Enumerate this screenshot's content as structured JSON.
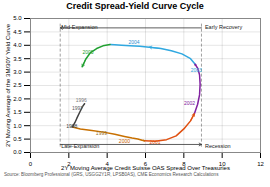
{
  "chart_data": {
    "type": "line",
    "title": "Credit Spread-Yield Curve Cycle",
    "xlabel": "2Y Moving Average Credit Suisse OAS Spread Over Treasuries",
    "ylabel": "2Y Moving Average of the 3M/30Y Yield Curve",
    "xlim": [
      0,
      12
    ],
    "ylim": [
      0,
      5
    ],
    "xticks": [
      0,
      2,
      4,
      6,
      8,
      10,
      12
    ],
    "yticks": [
      {
        "value": 0,
        "label": "0.0"
      },
      0.5,
      {
        "value": 1,
        "label": "1.0"
      },
      1.5,
      {
        "value": 2,
        "label": "2.0"
      },
      2.5,
      {
        "value": 3,
        "label": "3.0"
      },
      3.5,
      {
        "value": 4,
        "label": "4.0"
      },
      4.5,
      {
        "value": 5,
        "label": "5.0"
      }
    ],
    "grid": true,
    "series": [
      {
        "color": "#404040",
        "x": [
          2.82,
          2.72,
          2.58,
          2.42,
          2.32,
          2.24,
          2.18
        ],
        "values": [
          1.82,
          1.72,
          1.52,
          1.28,
          1.12,
          1.02,
          0.95
        ]
      },
      {
        "color": "#C87000",
        "x": [
          2.18,
          2.6,
          3.2,
          3.8,
          4.4,
          4.9,
          5.3,
          5.6,
          5.82,
          5.95
        ],
        "values": [
          0.95,
          0.88,
          0.82,
          0.76,
          0.68,
          0.6,
          0.54,
          0.5,
          0.46,
          0.44
        ]
      },
      {
        "color": "#E05010",
        "x": [
          5.95,
          6.5,
          7.1,
          7.6,
          8.0,
          8.35,
          8.55
        ],
        "values": [
          0.44,
          0.42,
          0.48,
          0.62,
          0.88,
          1.18,
          1.45
        ]
      },
      {
        "color": "#8020A0",
        "x": [
          8.55,
          8.72,
          8.82,
          8.85,
          8.82,
          8.72,
          8.58
        ],
        "values": [
          1.45,
          1.8,
          2.15,
          2.55,
          2.9,
          3.15,
          3.3
        ]
      },
      {
        "color": "#30A8E0",
        "x": [
          8.58,
          8.35,
          7.9,
          7.35,
          6.8,
          6.2,
          5.7,
          5.2,
          4.75,
          4.4,
          4.15
        ],
        "values": [
          3.3,
          3.5,
          3.68,
          3.8,
          3.88,
          3.93,
          3.96,
          3.98,
          4.0,
          4.02,
          4.03
        ]
      },
      {
        "color": "#20A030",
        "x": [
          4.15,
          3.78,
          3.45,
          3.12,
          2.88,
          2.7
        ],
        "values": [
          4.03,
          3.98,
          3.88,
          3.72,
          3.48,
          3.2
        ]
      }
    ],
    "arrows": [
      {
        "x0": 2.24,
        "y0": 1.02,
        "x1": 2.18,
        "y1": 0.95,
        "color": "#404040"
      },
      {
        "x0": 5.82,
        "y0": 0.46,
        "x1": 5.95,
        "y1": 0.44,
        "color": "#C87000"
      },
      {
        "x0": 8.35,
        "y0": 1.18,
        "x1": 8.55,
        "y1": 1.45,
        "color": "#E05010"
      },
      {
        "x0": 8.72,
        "y0": 3.15,
        "x1": 8.58,
        "y1": 3.3,
        "color": "#8020A0"
      },
      {
        "x0": 6.8,
        "y0": 3.88,
        "x1": 6.2,
        "y1": 3.93,
        "color": "#30A8E0"
      },
      {
        "x0": 2.88,
        "y0": 3.48,
        "x1": 2.7,
        "y1": 3.2,
        "color": "#20A030"
      },
      {
        "x0": 1.55,
        "y0": 0.3,
        "x1": 8.92,
        "y1": 0.3,
        "color": "#333333"
      },
      {
        "x0": 8.92,
        "y0": 4.65,
        "x1": 1.55,
        "y1": 4.65,
        "color": "#333333"
      }
    ],
    "vlines": [
      {
        "x": 1.55,
        "y0": 0.2,
        "y1": 4.8,
        "color": "#555555"
      },
      {
        "x": 8.92,
        "y0": 0.2,
        "y1": 4.8,
        "color": "#555555"
      }
    ],
    "year_labels": [
      {
        "text": "1996",
        "x": 2.65,
        "y": 1.95,
        "color": "#808080"
      },
      {
        "text": "1997",
        "x": 2.45,
        "y": 1.65,
        "color": "#606060"
      },
      {
        "text": "1998",
        "x": 2.15,
        "y": 0.98,
        "color": "#404040"
      },
      {
        "text": "1999",
        "x": 3.7,
        "y": 0.72,
        "color": "#9B7020"
      },
      {
        "text": "2000",
        "x": 4.9,
        "y": 0.42,
        "color": "#C86000"
      },
      {
        "text": "2001",
        "x": 6.5,
        "y": 0.38,
        "color": "#E05010"
      },
      {
        "text": "2002",
        "x": 8.3,
        "y": 1.85,
        "color": "#8020A0"
      },
      {
        "text": "2003",
        "x": 8.65,
        "y": 3.05,
        "color": "#30A8E0"
      },
      {
        "text": "2004",
        "x": 5.4,
        "y": 4.12,
        "color": "#3090D0"
      },
      {
        "text": "2005",
        "x": 3.0,
        "y": 3.72,
        "color": "#20A030"
      }
    ],
    "quadrant_labels": [
      {
        "text": "Mid-Expansion",
        "x": 1.6,
        "y": 4.62
      },
      {
        "text": "Early Recovery",
        "x": 9.1,
        "y": 4.62
      },
      {
        "text": "Late-Expansion",
        "x": 1.6,
        "y": 0.18
      },
      {
        "text": "Recession",
        "x": 9.1,
        "y": 0.18
      }
    ],
    "source": "Source: Bloomberg Professional (GRS, USGG2Y1R, LPSB0AS), CME Economics Research Calculations"
  }
}
